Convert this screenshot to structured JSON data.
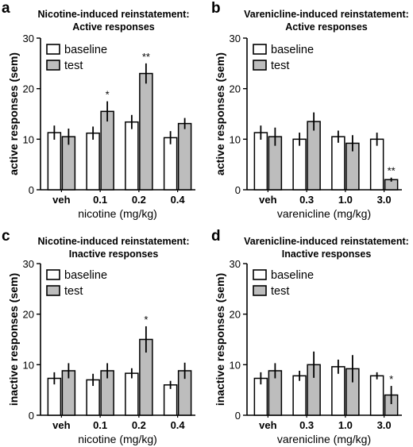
{
  "colors": {
    "baseline_fill": "#ffffff",
    "test_fill": "#bdbdbd",
    "stroke": "#000000"
  },
  "chart_data": [
    {
      "type": "bar",
      "panel": "a",
      "title": [
        "Nicotine-induced reinstatement:",
        "Active responses"
      ],
      "xlabel": "nicotine (mg/kg)",
      "ylabel": "active responses (sem)",
      "ylim": [
        0,
        30
      ],
      "yticks": [
        0,
        10,
        20,
        30
      ],
      "categories": [
        "veh",
        "0.1",
        "0.2",
        "0.4"
      ],
      "legend": {
        "position": "top-left",
        "entries": [
          "baseline",
          "test"
        ]
      },
      "series": [
        {
          "name": "baseline",
          "values": [
            11.3,
            11.2,
            13.4,
            10.3
          ],
          "sem": [
            1.4,
            1.3,
            1.4,
            1.3
          ]
        },
        {
          "name": "test",
          "values": [
            10.5,
            15.5,
            23.0,
            13.1
          ],
          "sem": [
            1.6,
            2.0,
            2.0,
            1.1
          ]
        }
      ],
      "significance": [
        null,
        null,
        null,
        null,
        null,
        "*",
        null,
        "**",
        null,
        null,
        null,
        null
      ],
      "significance_by_series": {
        "baseline": [
          "",
          "",
          "",
          ""
        ],
        "test": [
          "",
          "*",
          "**",
          ""
        ]
      }
    },
    {
      "type": "bar",
      "panel": "b",
      "title": [
        "Varenicline-induced reinstatement:",
        "Active responses"
      ],
      "xlabel": "varenicline (mg/kg)",
      "ylabel": "active responses (sem)",
      "ylim": [
        0,
        30
      ],
      "yticks": [
        0,
        10,
        20,
        30
      ],
      "categories": [
        "veh",
        "0.3",
        "1.0",
        "3.0"
      ],
      "legend": {
        "position": "top-left",
        "entries": [
          "baseline",
          "test"
        ]
      },
      "series": [
        {
          "name": "baseline",
          "values": [
            11.3,
            10.0,
            10.5,
            10.0
          ],
          "sem": [
            1.4,
            1.3,
            1.2,
            1.3
          ]
        },
        {
          "name": "test",
          "values": [
            10.5,
            13.5,
            9.2,
            2.0
          ],
          "sem": [
            1.8,
            1.8,
            1.6,
            0.4
          ]
        }
      ],
      "significance_by_series": {
        "baseline": [
          "",
          "",
          "",
          ""
        ],
        "test": [
          "",
          "",
          "",
          "**"
        ]
      }
    },
    {
      "type": "bar",
      "panel": "c",
      "title": [
        "Nicotine-induced reinstatement:",
        "Inactive responses"
      ],
      "xlabel": "nicotine (mg/kg)",
      "ylabel": "inactive responses (sem)",
      "ylim": [
        0,
        30
      ],
      "yticks": [
        0,
        10,
        20,
        30
      ],
      "categories": [
        "veh",
        "0.1",
        "0.2",
        "0.4"
      ],
      "legend": {
        "position": "top-left",
        "entries": [
          "baseline",
          "test"
        ]
      },
      "series": [
        {
          "name": "baseline",
          "values": [
            7.3,
            7.0,
            8.3,
            6.0
          ],
          "sem": [
            1.2,
            1.2,
            1.0,
            0.8
          ]
        },
        {
          "name": "test",
          "values": [
            8.8,
            8.8,
            15.0,
            8.8
          ],
          "sem": [
            1.5,
            1.5,
            2.6,
            1.6
          ]
        }
      ],
      "significance_by_series": {
        "baseline": [
          "",
          "",
          "",
          ""
        ],
        "test": [
          "",
          "",
          "*",
          ""
        ]
      }
    },
    {
      "type": "bar",
      "panel": "d",
      "title": [
        "Varenicline-induced reinstatement:",
        "Inactive responses"
      ],
      "xlabel": "varenicline (mg/kg)",
      "ylabel": "inactive responses (sem)",
      "ylim": [
        0,
        30
      ],
      "yticks": [
        0,
        10,
        20,
        30
      ],
      "categories": [
        "veh",
        "0.3",
        "1.0",
        "3.0"
      ],
      "legend": {
        "position": "top-left",
        "entries": [
          "baseline",
          "test"
        ]
      },
      "series": [
        {
          "name": "baseline",
          "values": [
            7.3,
            7.8,
            9.6,
            7.8
          ],
          "sem": [
            1.2,
            1.0,
            1.4,
            0.7
          ]
        },
        {
          "name": "test",
          "values": [
            8.8,
            10.0,
            9.2,
            4.0
          ],
          "sem": [
            1.5,
            2.6,
            2.7,
            1.8
          ]
        }
      ],
      "significance_by_series": {
        "baseline": [
          "",
          "",
          "",
          ""
        ],
        "test": [
          "",
          "",
          "",
          "*"
        ]
      }
    }
  ]
}
